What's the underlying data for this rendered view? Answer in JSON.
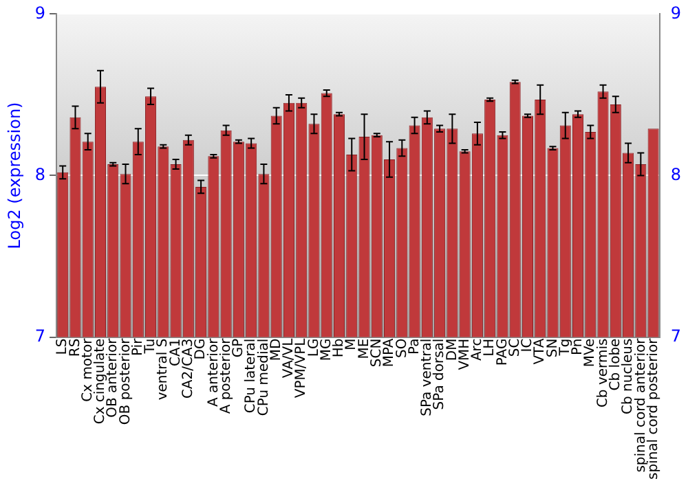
{
  "chart_data": {
    "type": "bar",
    "ylabel": "Log2 (expression)",
    "categories": [
      "LS",
      "RS",
      "Cx motor",
      "Cx cingulate",
      "OB anterior",
      "OB posterior",
      "Pir",
      "Tu",
      "ventral S",
      "CA1",
      "CA2/CA3",
      "DG",
      "A anterior",
      "A posterior",
      "GP",
      "CPu lateral",
      "CPu medial",
      "MD",
      "VA/VL",
      "VPM/VPL",
      "LG",
      "MG",
      "Hb",
      "M",
      "ME",
      "SCN",
      "MPA",
      "SO",
      "Pa",
      "SPa ventral",
      "SPa dorsal",
      "DM",
      "VMH",
      "Arc",
      "LH",
      "PAG",
      "SC",
      "IC",
      "VTA",
      "SN",
      "Tg",
      "Pn",
      "MVe",
      "Cb vermis",
      "Cb lobe",
      "Cb nucleus",
      "spinal cord anterior",
      "spinal cord posterior"
    ],
    "values": [
      8.02,
      8.36,
      8.21,
      8.55,
      8.07,
      8.01,
      8.21,
      8.49,
      8.18,
      8.07,
      8.22,
      7.93,
      8.12,
      8.28,
      8.21,
      8.2,
      8.01,
      8.37,
      8.45,
      8.45,
      8.32,
      8.51,
      8.38,
      8.13,
      8.24,
      8.25,
      8.1,
      8.17,
      8.31,
      8.36,
      8.29,
      8.29,
      8.15,
      8.26,
      8.47,
      8.25,
      8.58,
      8.37,
      8.47,
      8.17,
      8.31,
      8.38,
      8.27,
      8.52,
      8.44,
      8.14,
      8.07,
      8.29
    ],
    "errors": [
      0.04,
      0.07,
      0.05,
      0.1,
      0.01,
      0.06,
      0.08,
      0.05,
      0.01,
      0.03,
      0.03,
      0.04,
      0.01,
      0.03,
      0.01,
      0.03,
      0.06,
      0.05,
      0.05,
      0.03,
      0.06,
      0.02,
      0.01,
      0.1,
      0.14,
      0.01,
      0.11,
      0.05,
      0.05,
      0.04,
      0.02,
      0.09,
      0.01,
      0.07,
      0.01,
      0.02,
      0.01,
      0.01,
      0.09,
      0.01,
      0.08,
      0.02,
      0.04,
      0.04,
      0.05,
      0.06,
      0.07,
      null
    ],
    "color": "#c0393b",
    "ylim": [
      7,
      9
    ],
    "yticks": [
      7,
      8,
      9
    ],
    "y2lim": [
      7,
      9
    ],
    "y2ticks": [
      7,
      8,
      9
    ],
    "grid": "y"
  }
}
